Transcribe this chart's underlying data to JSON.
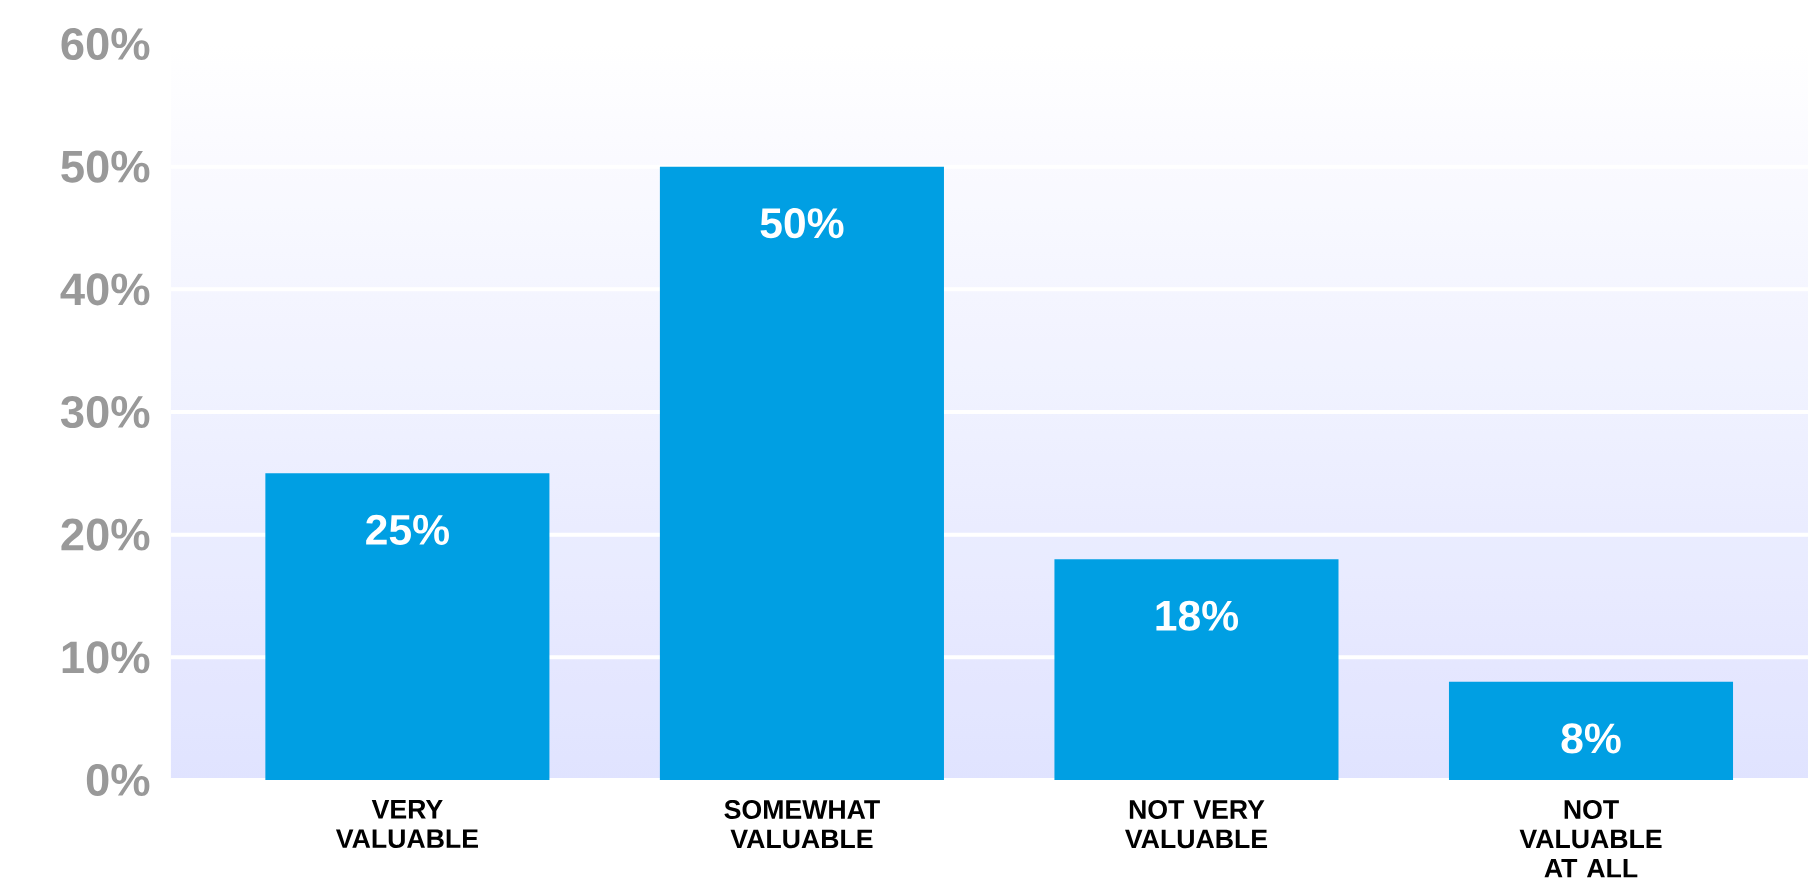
{
  "chart_data": {
    "type": "bar",
    "categories": [
      "VERY VALUABLE",
      "SOMEWHAT VALUABLE",
      "NOT VERY VALUABLE",
      "NOT VALUABLE AT ALL"
    ],
    "values": [
      25,
      50,
      18,
      8
    ],
    "value_labels": [
      "25%",
      "50%",
      "18%",
      "8%"
    ],
    "color": "#009fe3",
    "ylim": [
      0,
      60
    ],
    "yticks": [
      {
        "value": 0,
        "label": "0%"
      },
      {
        "value": 10,
        "label": "10%"
      },
      {
        "value": 20,
        "label": "20%"
      },
      {
        "value": 30,
        "label": "30%"
      },
      {
        "value": 40,
        "label": "40%"
      },
      {
        "value": 50,
        "label": "50%"
      },
      {
        "value": 60,
        "label": "60%"
      }
    ],
    "grid": "y"
  }
}
